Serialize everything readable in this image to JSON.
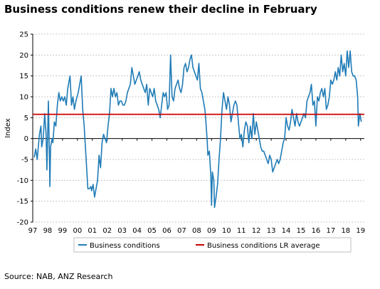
{
  "chart_data": {
    "type": "line",
    "title": "Business conditions renew their decline in February",
    "ylabel": "Index",
    "xlabel": "",
    "ylim": [
      -20,
      25
    ],
    "yticks": [
      25,
      20,
      15,
      10,
      5,
      0,
      -5,
      -10,
      -15,
      -20
    ],
    "xlim": [
      1997.0,
      2019.25
    ],
    "xticks": [
      {
        "x": 1997.0,
        "label": "97"
      },
      {
        "x": 1998.0,
        "label": "98"
      },
      {
        "x": 1999.0,
        "label": "99"
      },
      {
        "x": 2000.0,
        "label": "00"
      },
      {
        "x": 2001.0,
        "label": "01"
      },
      {
        "x": 2002.0,
        "label": "02"
      },
      {
        "x": 2003.0,
        "label": "03"
      },
      {
        "x": 2004.0,
        "label": "04"
      },
      {
        "x": 2005.0,
        "label": "05"
      },
      {
        "x": 2006.0,
        "label": "06"
      },
      {
        "x": 2007.0,
        "label": "07"
      },
      {
        "x": 2008.0,
        "label": "08"
      },
      {
        "x": 2009.0,
        "label": "09"
      },
      {
        "x": 2010.0,
        "label": "10"
      },
      {
        "x": 2011.0,
        "label": "11"
      },
      {
        "x": 2012.0,
        "label": "12"
      },
      {
        "x": 2013.0,
        "label": "13"
      },
      {
        "x": 2014.0,
        "label": "14"
      },
      {
        "x": 2015.0,
        "label": "15"
      },
      {
        "x": 2016.0,
        "label": "16"
      },
      {
        "x": 2017.0,
        "label": "17"
      },
      {
        "x": 2018.0,
        "label": "18"
      },
      {
        "x": 2019.0,
        "label": "19"
      }
    ],
    "grid": true,
    "legend_position": "bottom",
    "series": [
      {
        "name": "Business conditions",
        "color": "#1f7bb6",
        "points": [
          [
            1997.1,
            -4.5
          ],
          [
            1997.2,
            -2.5
          ],
          [
            1997.3,
            -5
          ],
          [
            1997.45,
            1
          ],
          [
            1997.55,
            3
          ],
          [
            1997.6,
            -2
          ],
          [
            1997.7,
            0
          ],
          [
            1997.8,
            6
          ],
          [
            1997.9,
            1
          ],
          [
            1997.95,
            -7.5
          ],
          [
            1998.05,
            9
          ],
          [
            1998.1,
            0
          ],
          [
            1998.15,
            -11.5
          ],
          [
            1998.2,
            -2
          ],
          [
            1998.3,
            0
          ],
          [
            1998.35,
            -1
          ],
          [
            1998.45,
            4
          ],
          [
            1998.55,
            3
          ],
          [
            1998.65,
            8
          ],
          [
            1998.75,
            11
          ],
          [
            1998.85,
            9
          ],
          [
            1998.95,
            10
          ],
          [
            1999.05,
            9
          ],
          [
            1999.15,
            10
          ],
          [
            1999.25,
            8
          ],
          [
            1999.35,
            12
          ],
          [
            1999.5,
            15
          ],
          [
            1999.6,
            8
          ],
          [
            1999.7,
            10
          ],
          [
            1999.8,
            7
          ],
          [
            1999.9,
            9
          ],
          [
            2000.05,
            11
          ],
          [
            2000.15,
            13
          ],
          [
            2000.25,
            15
          ],
          [
            2000.35,
            7
          ],
          [
            2000.45,
            3
          ],
          [
            2000.5,
            0
          ],
          [
            2000.55,
            -3
          ],
          [
            2000.65,
            -9
          ],
          [
            2000.7,
            -12
          ],
          [
            2000.8,
            -12
          ],
          [
            2000.9,
            -11.5
          ],
          [
            2000.95,
            -12.5
          ],
          [
            2001.05,
            -11
          ],
          [
            2001.15,
            -14
          ],
          [
            2001.25,
            -12
          ],
          [
            2001.35,
            -10
          ],
          [
            2001.45,
            -4
          ],
          [
            2001.55,
            -7
          ],
          [
            2001.65,
            -1
          ],
          [
            2001.75,
            1
          ],
          [
            2001.85,
            0
          ],
          [
            2001.95,
            -1
          ],
          [
            2002.05,
            3
          ],
          [
            2002.15,
            6
          ],
          [
            2002.25,
            12
          ],
          [
            2002.35,
            10
          ],
          [
            2002.45,
            12
          ],
          [
            2002.55,
            10
          ],
          [
            2002.65,
            11
          ],
          [
            2002.75,
            8
          ],
          [
            2002.85,
            9
          ],
          [
            2002.95,
            9
          ],
          [
            2003.05,
            8
          ],
          [
            2003.15,
            8
          ],
          [
            2003.25,
            9
          ],
          [
            2003.35,
            11
          ],
          [
            2003.45,
            12
          ],
          [
            2003.55,
            13
          ],
          [
            2003.65,
            17
          ],
          [
            2003.75,
            15
          ],
          [
            2003.85,
            13
          ],
          [
            2003.95,
            14
          ],
          [
            2004.05,
            15
          ],
          [
            2004.15,
            16
          ],
          [
            2004.25,
            14
          ],
          [
            2004.35,
            13
          ],
          [
            2004.45,
            12
          ],
          [
            2004.55,
            11
          ],
          [
            2004.65,
            13
          ],
          [
            2004.75,
            8
          ],
          [
            2004.85,
            12
          ],
          [
            2004.95,
            11
          ],
          [
            2005.05,
            10
          ],
          [
            2005.15,
            12
          ],
          [
            2005.25,
            9
          ],
          [
            2005.35,
            8
          ],
          [
            2005.45,
            7
          ],
          [
            2005.55,
            5
          ],
          [
            2005.65,
            8
          ],
          [
            2005.75,
            11
          ],
          [
            2005.85,
            10
          ],
          [
            2005.95,
            11
          ],
          [
            2006.05,
            7
          ],
          [
            2006.15,
            8
          ],
          [
            2006.25,
            20
          ],
          [
            2006.35,
            10
          ],
          [
            2006.45,
            9
          ],
          [
            2006.55,
            12
          ],
          [
            2006.65,
            13
          ],
          [
            2006.75,
            14
          ],
          [
            2006.85,
            12
          ],
          [
            2006.95,
            11
          ],
          [
            2007.05,
            13
          ],
          [
            2007.15,
            17
          ],
          [
            2007.25,
            18
          ],
          [
            2007.35,
            16
          ],
          [
            2007.45,
            17
          ],
          [
            2007.55,
            19
          ],
          [
            2007.65,
            20
          ],
          [
            2007.75,
            17
          ],
          [
            2007.85,
            16
          ],
          [
            2007.95,
            15
          ],
          [
            2008.05,
            14
          ],
          [
            2008.15,
            18
          ],
          [
            2008.25,
            12
          ],
          [
            2008.35,
            11
          ],
          [
            2008.45,
            9
          ],
          [
            2008.55,
            7
          ],
          [
            2008.6,
            5
          ],
          [
            2008.7,
            0
          ],
          [
            2008.75,
            -4
          ],
          [
            2008.85,
            -3
          ],
          [
            2008.95,
            -9
          ],
          [
            2009.0,
            -16
          ],
          [
            2009.05,
            -8
          ],
          [
            2009.15,
            -10
          ],
          [
            2009.2,
            -16.5
          ],
          [
            2009.3,
            -14
          ],
          [
            2009.4,
            -11
          ],
          [
            2009.5,
            -5
          ],
          [
            2009.6,
            0
          ],
          [
            2009.7,
            7
          ],
          [
            2009.8,
            11
          ],
          [
            2009.9,
            9
          ],
          [
            2010.0,
            7
          ],
          [
            2010.1,
            10
          ],
          [
            2010.2,
            8
          ],
          [
            2010.3,
            4
          ],
          [
            2010.4,
            6
          ],
          [
            2010.5,
            8
          ],
          [
            2010.6,
            9
          ],
          [
            2010.7,
            8
          ],
          [
            2010.8,
            4
          ],
          [
            2010.9,
            0
          ],
          [
            2011.0,
            1
          ],
          [
            2011.1,
            -2
          ],
          [
            2011.2,
            2
          ],
          [
            2011.3,
            4
          ],
          [
            2011.4,
            3
          ],
          [
            2011.5,
            -1
          ],
          [
            2011.6,
            3
          ],
          [
            2011.7,
            0
          ],
          [
            2011.8,
            6
          ],
          [
            2011.9,
            1
          ],
          [
            2012.0,
            4
          ],
          [
            2012.1,
            2
          ],
          [
            2012.2,
            0
          ],
          [
            2012.3,
            -2
          ],
          [
            2012.4,
            -3
          ],
          [
            2012.5,
            -3
          ],
          [
            2012.6,
            -4
          ],
          [
            2012.7,
            -5
          ],
          [
            2012.8,
            -6
          ],
          [
            2012.9,
            -4
          ],
          [
            2013.0,
            -5
          ],
          [
            2013.1,
            -8
          ],
          [
            2013.2,
            -7
          ],
          [
            2013.3,
            -6
          ],
          [
            2013.4,
            -5
          ],
          [
            2013.5,
            -6
          ],
          [
            2013.6,
            -5
          ],
          [
            2013.7,
            -3
          ],
          [
            2013.8,
            -1
          ],
          [
            2013.9,
            0
          ],
          [
            2014.0,
            5
          ],
          [
            2014.1,
            3
          ],
          [
            2014.2,
            2
          ],
          [
            2014.3,
            4
          ],
          [
            2014.4,
            7
          ],
          [
            2014.5,
            5
          ],
          [
            2014.6,
            3
          ],
          [
            2014.7,
            6
          ],
          [
            2014.8,
            4
          ],
          [
            2014.9,
            3
          ],
          [
            2015.0,
            4
          ],
          [
            2015.1,
            5
          ],
          [
            2015.2,
            6
          ],
          [
            2015.3,
            5
          ],
          [
            2015.4,
            9
          ],
          [
            2015.5,
            10
          ],
          [
            2015.6,
            11
          ],
          [
            2015.7,
            13
          ],
          [
            2015.8,
            8
          ],
          [
            2015.9,
            9
          ],
          [
            2016.0,
            3
          ],
          [
            2016.1,
            10
          ],
          [
            2016.2,
            9
          ],
          [
            2016.3,
            11
          ],
          [
            2016.4,
            12
          ],
          [
            2016.5,
            10
          ],
          [
            2016.6,
            12
          ],
          [
            2016.7,
            7
          ],
          [
            2016.8,
            8
          ],
          [
            2016.9,
            10
          ],
          [
            2017.0,
            14
          ],
          [
            2017.1,
            13
          ],
          [
            2017.2,
            14
          ],
          [
            2017.3,
            16
          ],
          [
            2017.4,
            14
          ],
          [
            2017.5,
            17
          ],
          [
            2017.6,
            15
          ],
          [
            2017.7,
            20
          ],
          [
            2017.8,
            16
          ],
          [
            2017.9,
            18
          ],
          [
            2018.0,
            15
          ],
          [
            2018.1,
            21
          ],
          [
            2018.2,
            17
          ],
          [
            2018.3,
            21
          ],
          [
            2018.4,
            16
          ],
          [
            2018.5,
            15
          ],
          [
            2018.6,
            15
          ],
          [
            2018.7,
            14
          ],
          [
            2018.8,
            10
          ],
          [
            2018.85,
            3
          ],
          [
            2018.95,
            6
          ],
          [
            2019.05,
            4
          ]
        ]
      },
      {
        "name": "Business conditions LR average",
        "color": "#cc0000",
        "points": [
          [
            1997.0,
            5.8
          ],
          [
            2019.25,
            5.8
          ]
        ]
      }
    ]
  },
  "source": "Source: NAB, ANZ Research"
}
